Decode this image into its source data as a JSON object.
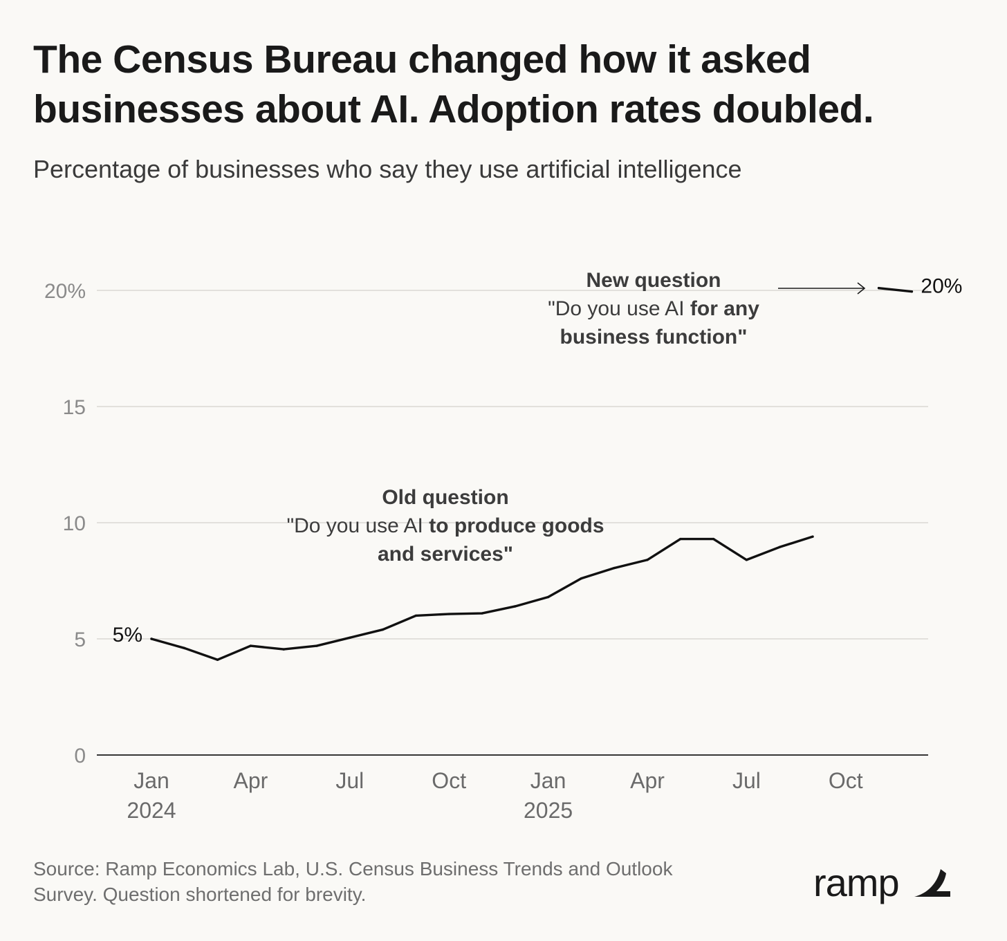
{
  "title_lines": [
    "The Census Bureau changed how it asked",
    "businesses about AI. Adoption rates doubled."
  ],
  "subtitle": "Percentage of businesses who say they use artificial intelligence",
  "chart_data": {
    "type": "line",
    "yticks": [
      "0",
      "5",
      "10",
      "15",
      "20%"
    ],
    "ylim": [
      0,
      20
    ],
    "xticks": [
      {
        "label": "Jan",
        "year": "2024",
        "date": "2024-01"
      },
      {
        "label": "Apr",
        "year": "",
        "date": "2024-04"
      },
      {
        "label": "Jul",
        "year": "",
        "date": "2024-07"
      },
      {
        "label": "Oct",
        "year": "",
        "date": "2024-10"
      },
      {
        "label": "Jan",
        "year": "2025",
        "date": "2025-01"
      },
      {
        "label": "Apr",
        "year": "",
        "date": "2025-04"
      },
      {
        "label": "Jul",
        "year": "",
        "date": "2025-07"
      },
      {
        "label": "Oct",
        "year": "",
        "date": "2025-10"
      }
    ],
    "grid": true,
    "series": [
      {
        "points": [
          {
            "x": "2024-01-01",
            "y": 5.0
          },
          {
            "x": "2024-02-01",
            "y": 4.6
          },
          {
            "x": "2024-03-01",
            "y": 4.1
          },
          {
            "x": "2024-04-01",
            "y": 4.7
          },
          {
            "x": "2024-05-01",
            "y": 4.55
          },
          {
            "x": "2024-06-01",
            "y": 4.7
          },
          {
            "x": "2024-07-01",
            "y": 5.05
          },
          {
            "x": "2024-08-01",
            "y": 5.4
          },
          {
            "x": "2024-09-01",
            "y": 6.0
          },
          {
            "x": "2024-10-01",
            "y": 6.07
          },
          {
            "x": "2024-11-01",
            "y": 6.1
          },
          {
            "x": "2024-12-01",
            "y": 6.4
          },
          {
            "x": "2025-01-01",
            "y": 6.8
          },
          {
            "x": "2025-02-01",
            "y": 7.6
          },
          {
            "x": "2025-03-01",
            "y": 8.05
          },
          {
            "x": "2025-04-01",
            "y": 8.4
          },
          {
            "x": "2025-05-01",
            "y": 9.3
          },
          {
            "x": "2025-06-01",
            "y": 9.3
          },
          {
            "x": "2025-07-01",
            "y": 8.4
          },
          {
            "x": "2025-08-01",
            "y": 8.95
          },
          {
            "x": "2025-09-01",
            "y": 9.4
          }
        ],
        "end_labels": {
          "start": "5%"
        }
      },
      {
        "points": [
          {
            "x": "2025-11-01",
            "y": 20.1
          },
          {
            "x": "2025-12-01",
            "y": 19.95
          }
        ],
        "end_labels": {
          "end": "20%"
        }
      }
    ],
    "annotations": {
      "old": {
        "heading": "Old question",
        "line1_normal": "\"Do you use AI ",
        "line1_bold": "to produce goods",
        "line2_bold": "and services\""
      },
      "new": {
        "heading": "New question",
        "line1_normal": "\"Do you use AI ",
        "line1_bold": "for any",
        "line2_bold": "business function\""
      }
    }
  },
  "source_lines": [
    "Source: Ramp Economics Lab, U.S. Census Business Trends and Outlook",
    "Survey. Question shortened for brevity."
  ],
  "logo": {
    "text": "ramp",
    "icon": "ramp-wing-icon"
  }
}
